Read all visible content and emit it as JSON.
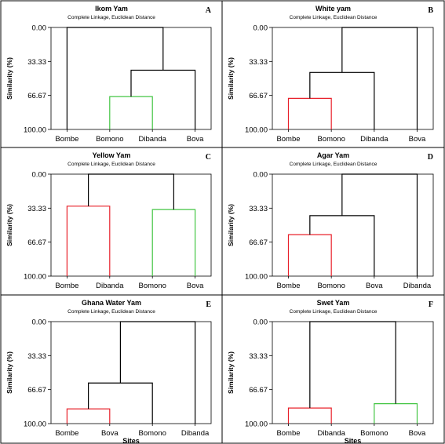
{
  "colors": {
    "red": "#e8202a",
    "green": "#43c543",
    "blue": "#1515e0",
    "black": "#000000"
  },
  "chart_data": [
    {
      "type": "dendrogram",
      "panel_letter": "A",
      "title": "Ikom Yam",
      "subtitle": "Complete Linkage, Euclidean Distance",
      "ylabel": "Similarity (%)",
      "xlabel": "",
      "yticks": [
        "0.00",
        "33.33",
        "66.67",
        "100.00"
      ],
      "ylim": [
        0,
        100
      ],
      "leaves": [
        "Bombe",
        "Bomono",
        "Dibanda",
        "Bova"
      ],
      "leaf_colors": [
        "red",
        "green",
        "green",
        "blue"
      ],
      "merges": [
        {
          "a": [
            1
          ],
          "b": [
            2
          ],
          "similarity": 67.8,
          "color": "green"
        },
        {
          "a": [
            1,
            2
          ],
          "b": [
            3
          ],
          "similarity": 41.9,
          "color": "black"
        },
        {
          "a": [
            0
          ],
          "b": [
            1,
            2,
            3
          ],
          "similarity": 0.0,
          "color": "black"
        }
      ]
    },
    {
      "type": "dendrogram",
      "panel_letter": "B",
      "title": "White yam",
      "subtitle": "Complete Linkage, Euclidean Distance",
      "ylabel": "Similarity (%)",
      "xlabel": "",
      "yticks": [
        "0.00",
        "33.33",
        "66.67",
        "100.00"
      ],
      "ylim": [
        0,
        100
      ],
      "leaves": [
        "Bombe",
        "Bomono",
        "Dibanda",
        "Bova"
      ],
      "leaf_colors": [
        "red",
        "red",
        "blue",
        "green"
      ],
      "merges": [
        {
          "a": [
            0
          ],
          "b": [
            1
          ],
          "similarity": 69.5,
          "color": "red"
        },
        {
          "a": [
            0,
            1
          ],
          "b": [
            2
          ],
          "similarity": 44.1,
          "color": "black"
        },
        {
          "a": [
            0,
            1,
            2
          ],
          "b": [
            3
          ],
          "similarity": 0.0,
          "color": "black"
        }
      ]
    },
    {
      "type": "dendrogram",
      "panel_letter": "C",
      "title": "Yellow Yam",
      "subtitle": "Complete Linkage, Euclidean Distance",
      "ylabel": "Similarity (%)",
      "xlabel": "",
      "yticks": [
        "0.00",
        "33.33",
        "66.67",
        "100.00"
      ],
      "ylim": [
        0,
        100
      ],
      "leaves": [
        "Bombe",
        "Dibanda",
        "Bomono",
        "Bova"
      ],
      "leaf_colors": [
        "red",
        "red",
        "green",
        "green"
      ],
      "merges": [
        {
          "a": [
            0
          ],
          "b": [
            1
          ],
          "similarity": 31.4,
          "color": "red"
        },
        {
          "a": [
            2
          ],
          "b": [
            3
          ],
          "similarity": 34.7,
          "color": "green"
        },
        {
          "a": [
            0,
            1
          ],
          "b": [
            2,
            3
          ],
          "similarity": 0.0,
          "color": "black"
        }
      ]
    },
    {
      "type": "dendrogram",
      "panel_letter": "D",
      "title": "Agar Yam",
      "subtitle": "Complete Linkage, Euclidean Distance",
      "ylabel": "Similarity (%)",
      "xlabel": "",
      "yticks": [
        "0.00",
        "33.33",
        "66.67",
        "100.00"
      ],
      "ylim": [
        0,
        100
      ],
      "leaves": [
        "Bombe",
        "Bomono",
        "Bova",
        "Dibanda"
      ],
      "leaf_colors": [
        "red",
        "red",
        "green",
        "blue"
      ],
      "merges": [
        {
          "a": [
            0
          ],
          "b": [
            1
          ],
          "similarity": 59.3,
          "color": "red"
        },
        {
          "a": [
            0,
            1
          ],
          "b": [
            2
          ],
          "similarity": 40.7,
          "color": "black"
        },
        {
          "a": [
            0,
            1,
            2
          ],
          "b": [
            3
          ],
          "similarity": 0.0,
          "color": "black"
        }
      ]
    },
    {
      "type": "dendrogram",
      "panel_letter": "E",
      "title": "Ghana Water Yam",
      "subtitle": "Complete Linkage, Euclidean Distance",
      "ylabel": "Similarity (%)",
      "xlabel": "Sites",
      "yticks": [
        "0.00",
        "33.33",
        "66.67",
        "100.00"
      ],
      "ylim": [
        0,
        100
      ],
      "leaves": [
        "Bombe",
        "Bova",
        "Bomono",
        "Dibanda"
      ],
      "leaf_colors": [
        "red",
        "red",
        "green",
        "blue"
      ],
      "merges": [
        {
          "a": [
            0
          ],
          "b": [
            1
          ],
          "similarity": 85.6,
          "color": "red"
        },
        {
          "a": [
            0,
            1
          ],
          "b": [
            2
          ],
          "similarity": 60.2,
          "color": "black"
        },
        {
          "a": [
            0,
            1,
            2
          ],
          "b": [
            3
          ],
          "similarity": 0.0,
          "color": "black"
        }
      ]
    },
    {
      "type": "dendrogram",
      "panel_letter": "F",
      "title": "Swet Yam",
      "subtitle": "Complete Linkage, Euclidean Distance",
      "ylabel": "Similarity (%)",
      "xlabel": "Sites",
      "yticks": [
        "0.00",
        "33.33",
        "66.67",
        "100.00"
      ],
      "ylim": [
        0,
        100
      ],
      "leaves": [
        "Bombe",
        "Dibanda",
        "Bomono",
        "Bova"
      ],
      "leaf_colors": [
        "red",
        "red",
        "green",
        "green"
      ],
      "merges": [
        {
          "a": [
            0
          ],
          "b": [
            1
          ],
          "similarity": 84.7,
          "color": "red"
        },
        {
          "a": [
            2
          ],
          "b": [
            3
          ],
          "similarity": 80.5,
          "color": "green"
        },
        {
          "a": [
            0,
            1
          ],
          "b": [
            2,
            3
          ],
          "similarity": 0.0,
          "color": "black"
        }
      ]
    }
  ]
}
